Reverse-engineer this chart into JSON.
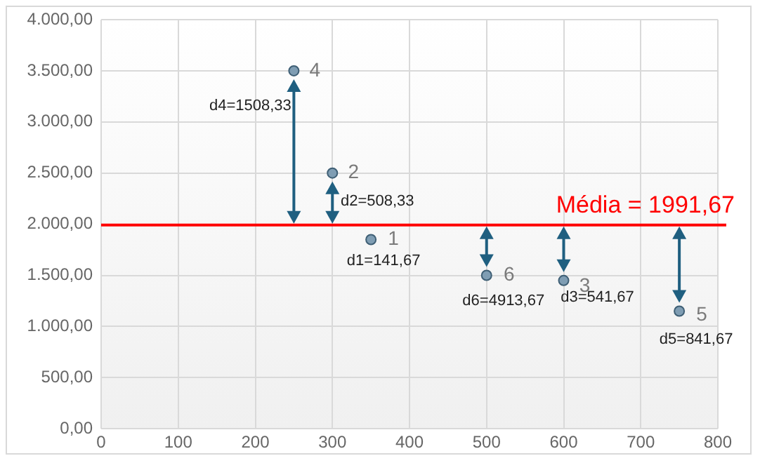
{
  "chart_data": {
    "type": "scatter",
    "x": [
      350,
      300,
      600,
      250,
      750,
      500
    ],
    "series": [
      {
        "color": "#7f9db3",
        "values": [
          1850,
          2500,
          1450,
          3500,
          1150,
          1500
        ]
      }
    ],
    "xlim": [
      0,
      800
    ],
    "xticks": [
      0,
      100,
      200,
      300,
      400,
      500,
      600,
      700,
      800
    ],
    "ylim": [
      0,
      4000
    ],
    "yticks": [
      {
        "value": 0,
        "label": "0,00"
      },
      {
        "value": 500,
        "label": "500,00"
      },
      {
        "value": 1000,
        "label": "1.000,00"
      },
      {
        "value": 1500,
        "label": "1.500,00"
      },
      {
        "value": 2000,
        "label": "2.000,00"
      },
      {
        "value": 2500,
        "label": "2.500,00"
      },
      {
        "value": 3000,
        "label": "3.000,00"
      },
      {
        "value": 3500,
        "label": "3.500,00"
      },
      {
        "value": 4000,
        "label": "4.000,00"
      }
    ],
    "grid": true,
    "legend": false,
    "marker": "circle",
    "ref_lines": [
      {
        "axis": "y",
        "value": 1991.67,
        "label": "Média = 1991,67",
        "color": "#ff0000"
      }
    ],
    "annotations": [
      {
        "text": "1",
        "x": 350,
        "y": 1850
      },
      {
        "text": "2",
        "x": 300,
        "y": 2500
      },
      {
        "text": "3",
        "x": 600,
        "y": 1450
      },
      {
        "text": "4",
        "x": 250,
        "y": 3500
      },
      {
        "text": "5",
        "x": 750,
        "y": 1150
      },
      {
        "text": "6",
        "x": 500,
        "y": 1500
      },
      {
        "text": "d1=141,67",
        "x": 350,
        "y": 1850
      },
      {
        "text": "d2=508,33",
        "x": 300,
        "y": 2500
      },
      {
        "text": "d3=541,67",
        "x": 600,
        "y": 1450
      },
      {
        "text": "d4=1508,33",
        "x": 250,
        "y": 3500
      },
      {
        "text": "d5=841,67",
        "x": 750,
        "y": 1150
      },
      {
        "text": "d6=4913,67",
        "x": 500,
        "y": 1500
      }
    ]
  }
}
